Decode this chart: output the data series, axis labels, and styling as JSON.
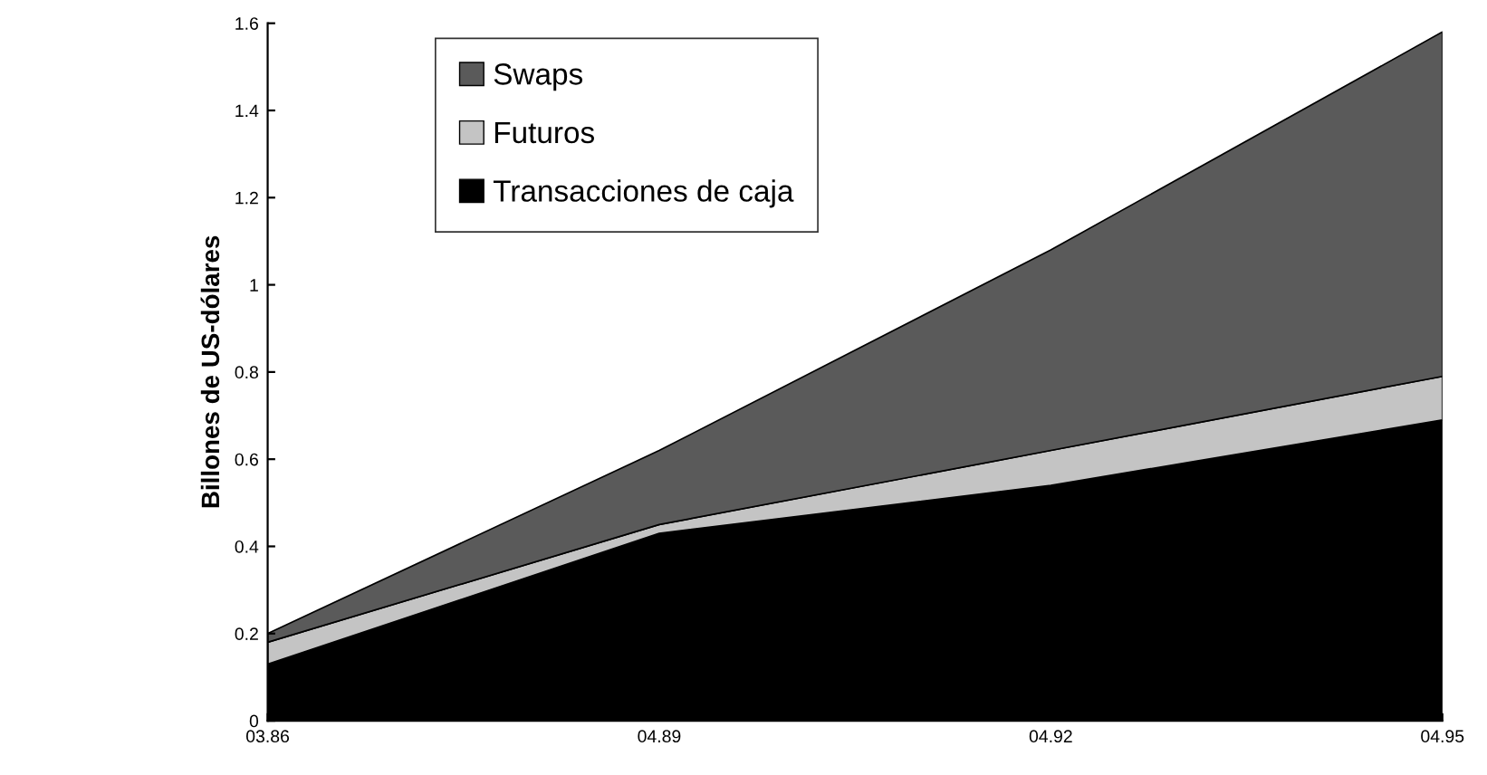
{
  "chart_data": {
    "type": "area",
    "stacked": true,
    "ylabel": "Billones de US-dólares",
    "categories": [
      "03.86",
      "04.89",
      "04.92",
      "04.95"
    ],
    "series": [
      {
        "name": "Transacciones de caja",
        "color": "#000000",
        "values": [
          0.13,
          0.43,
          0.54,
          0.69
        ]
      },
      {
        "name": "Futuros",
        "color": "#c4c4c4",
        "values": [
          0.05,
          0.02,
          0.08,
          0.1
        ]
      },
      {
        "name": "Swaps",
        "color": "#5a5a5a",
        "values": [
          0.02,
          0.17,
          0.46,
          0.79
        ]
      }
    ],
    "ylim": [
      0,
      1.6
    ],
    "yticks": [
      0,
      0.2,
      0.4,
      0.6,
      0.8,
      1,
      1.2,
      1.4,
      1.6
    ],
    "grid": false,
    "legend": "top left"
  }
}
